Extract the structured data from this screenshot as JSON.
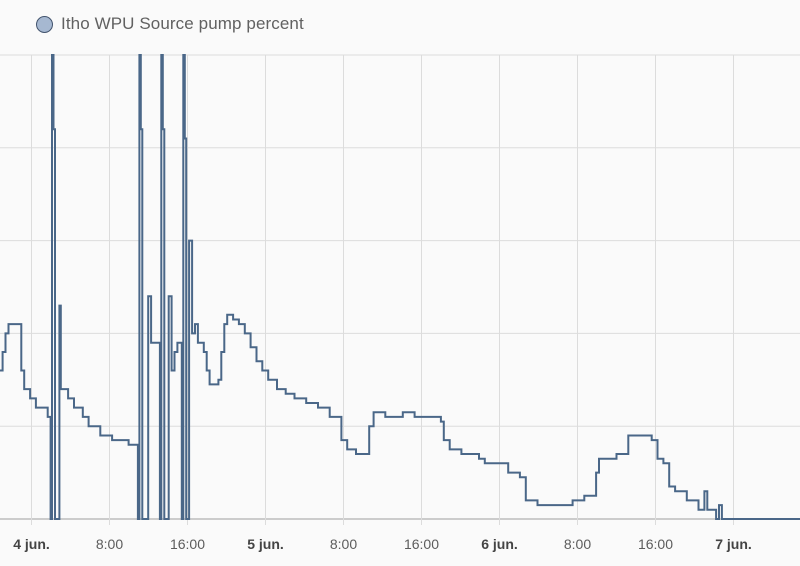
{
  "legend": {
    "label": "Itho WPU Source pump percent",
    "swatch_fill": "#a6b8d1",
    "swatch_border": "#43546e"
  },
  "colors": {
    "line": "#4a6788",
    "grid": "#dcdcdc",
    "axis": "#9e9e9e",
    "background": "#fafafa"
  },
  "chart_data": {
    "type": "line",
    "title": "",
    "xlabel": "",
    "ylabel": "",
    "step": true,
    "grid": true,
    "legend_position": "top-left",
    "ylim": [
      0,
      5
    ],
    "xlim": [
      "2024-06-03T20:52",
      "2024-06-07T06:51"
    ],
    "x_ticks": [
      {
        "label": "4 jun.",
        "time": "2024-06-04T00:00",
        "bold": true
      },
      {
        "label": "8:00",
        "time": "2024-06-04T08:00",
        "bold": false
      },
      {
        "label": "16:00",
        "time": "2024-06-04T16:00",
        "bold": false
      },
      {
        "label": "5 jun.",
        "time": "2024-06-05T00:00",
        "bold": true
      },
      {
        "label": "8:00",
        "time": "2024-06-05T08:00",
        "bold": false
      },
      {
        "label": "16:00",
        "time": "2024-06-05T16:00",
        "bold": false
      },
      {
        "label": "6 jun.",
        "time": "2024-06-06T00:00",
        "bold": true
      },
      {
        "label": "8:00",
        "time": "2024-06-06T08:00",
        "bold": false
      },
      {
        "label": "16:00",
        "time": "2024-06-06T16:00",
        "bold": false
      },
      {
        "label": "7 jun.",
        "time": "2024-06-07T00:00",
        "bold": true
      }
    ],
    "series": [
      {
        "points": [
          [
            "2024-06-03T20:52",
            1.6
          ],
          [
            "2024-06-03T21:08",
            1.8
          ],
          [
            "2024-06-03T21:26",
            2.0
          ],
          [
            "2024-06-03T21:44",
            2.1
          ],
          [
            "2024-06-03T23:03",
            1.6
          ],
          [
            "2024-06-03T23:21",
            1.4
          ],
          [
            "2024-06-03T23:57",
            1.3
          ],
          [
            "2024-06-04T00:33",
            1.2
          ],
          [
            "2024-06-04T01:45",
            1.1
          ],
          [
            "2024-06-04T02:03",
            0.0
          ],
          [
            "2024-06-04T02:12",
            5.0
          ],
          [
            "2024-06-04T02:21",
            4.2
          ],
          [
            "2024-06-04T02:30",
            0.0
          ],
          [
            "2024-06-04T02:57",
            2.3
          ],
          [
            "2024-06-04T03:06",
            1.4
          ],
          [
            "2024-06-04T03:51",
            1.3
          ],
          [
            "2024-06-04T04:27",
            1.2
          ],
          [
            "2024-06-04T05:21",
            1.1
          ],
          [
            "2024-06-04T05:57",
            1.0
          ],
          [
            "2024-06-04T07:09",
            0.9
          ],
          [
            "2024-06-04T08:21",
            0.85
          ],
          [
            "2024-06-04T10:03",
            0.8
          ],
          [
            "2024-06-04T11:00",
            0.0
          ],
          [
            "2024-06-04T11:09",
            5.0
          ],
          [
            "2024-06-04T11:18",
            4.2
          ],
          [
            "2024-06-04T11:27",
            0.0
          ],
          [
            "2024-06-04T12:03",
            2.4
          ],
          [
            "2024-06-04T12:21",
            1.9
          ],
          [
            "2024-06-04T12:57",
            1.9
          ],
          [
            "2024-06-04T13:15",
            0.0
          ],
          [
            "2024-06-04T13:24",
            5.0
          ],
          [
            "2024-06-04T13:33",
            4.2
          ],
          [
            "2024-06-04T13:42",
            0.0
          ],
          [
            "2024-06-04T14:09",
            2.4
          ],
          [
            "2024-06-04T14:27",
            1.6
          ],
          [
            "2024-06-04T14:45",
            1.8
          ],
          [
            "2024-06-04T15:03",
            1.9
          ],
          [
            "2024-06-04T15:30",
            0.0
          ],
          [
            "2024-06-04T15:39",
            5.0
          ],
          [
            "2024-06-04T15:48",
            4.1
          ],
          [
            "2024-06-04T15:57",
            0.0
          ],
          [
            "2024-06-04T16:15",
            3.0
          ],
          [
            "2024-06-04T16:33",
            2.0
          ],
          [
            "2024-06-04T16:51",
            2.1
          ],
          [
            "2024-06-04T17:09",
            1.9
          ],
          [
            "2024-06-04T17:45",
            1.8
          ],
          [
            "2024-06-04T18:03",
            1.6
          ],
          [
            "2024-06-04T18:21",
            1.45
          ],
          [
            "2024-06-04T19:15",
            1.5
          ],
          [
            "2024-06-04T19:33",
            1.8
          ],
          [
            "2024-06-04T19:51",
            2.1
          ],
          [
            "2024-06-04T20:09",
            2.2
          ],
          [
            "2024-06-04T20:45",
            2.15
          ],
          [
            "2024-06-04T21:21",
            2.1
          ],
          [
            "2024-06-04T21:57",
            2.0
          ],
          [
            "2024-06-04T22:33",
            1.85
          ],
          [
            "2024-06-04T23:09",
            1.7
          ],
          [
            "2024-06-04T23:45",
            1.6
          ],
          [
            "2024-06-05T00:21",
            1.5
          ],
          [
            "2024-06-05T01:15",
            1.4
          ],
          [
            "2024-06-05T02:09",
            1.35
          ],
          [
            "2024-06-05T03:03",
            1.3
          ],
          [
            "2024-06-05T04:15",
            1.25
          ],
          [
            "2024-06-05T05:27",
            1.2
          ],
          [
            "2024-06-05T06:39",
            1.1
          ],
          [
            "2024-06-05T07:51",
            0.85
          ],
          [
            "2024-06-05T08:27",
            0.75
          ],
          [
            "2024-06-05T09:21",
            0.7
          ],
          [
            "2024-06-05T10:33",
            0.7
          ],
          [
            "2024-06-05T10:42",
            1.0
          ],
          [
            "2024-06-05T11:09",
            1.15
          ],
          [
            "2024-06-05T12:21",
            1.1
          ],
          [
            "2024-06-05T13:33",
            1.1
          ],
          [
            "2024-06-05T14:09",
            1.15
          ],
          [
            "2024-06-05T14:45",
            1.15
          ],
          [
            "2024-06-05T15:21",
            1.1
          ],
          [
            "2024-06-05T18:03",
            1.05
          ],
          [
            "2024-06-05T18:21",
            0.85
          ],
          [
            "2024-06-05T18:57",
            0.75
          ],
          [
            "2024-06-05T20:09",
            0.7
          ],
          [
            "2024-06-05T21:57",
            0.65
          ],
          [
            "2024-06-05T22:33",
            0.6
          ],
          [
            "2024-06-05T23:45",
            0.6
          ],
          [
            "2024-06-06T00:57",
            0.5
          ],
          [
            "2024-06-06T02:09",
            0.45
          ],
          [
            "2024-06-06T02:45",
            0.2
          ],
          [
            "2024-06-06T03:57",
            0.15
          ],
          [
            "2024-06-06T06:39",
            0.15
          ],
          [
            "2024-06-06T07:33",
            0.2
          ],
          [
            "2024-06-06T08:45",
            0.25
          ],
          [
            "2024-06-06T09:57",
            0.5
          ],
          [
            "2024-06-06T10:15",
            0.65
          ],
          [
            "2024-06-06T12:03",
            0.7
          ],
          [
            "2024-06-06T13:15",
            0.9
          ],
          [
            "2024-06-06T14:27",
            0.9
          ],
          [
            "2024-06-06T15:39",
            0.85
          ],
          [
            "2024-06-06T16:15",
            0.65
          ],
          [
            "2024-06-06T16:51",
            0.6
          ],
          [
            "2024-06-06T17:27",
            0.35
          ],
          [
            "2024-06-06T18:03",
            0.3
          ],
          [
            "2024-06-06T18:39",
            0.3
          ],
          [
            "2024-06-06T19:15",
            0.2
          ],
          [
            "2024-06-06T20:27",
            0.1
          ],
          [
            "2024-06-06T21:03",
            0.3
          ],
          [
            "2024-06-06T21:21",
            0.1
          ],
          [
            "2024-06-06T21:57",
            0.1
          ],
          [
            "2024-06-06T22:15",
            0.0
          ],
          [
            "2024-06-06T22:33",
            0.15
          ],
          [
            "2024-06-06T22:51",
            0.0
          ],
          [
            "2024-06-07T06:51",
            0.0
          ]
        ]
      }
    ]
  }
}
